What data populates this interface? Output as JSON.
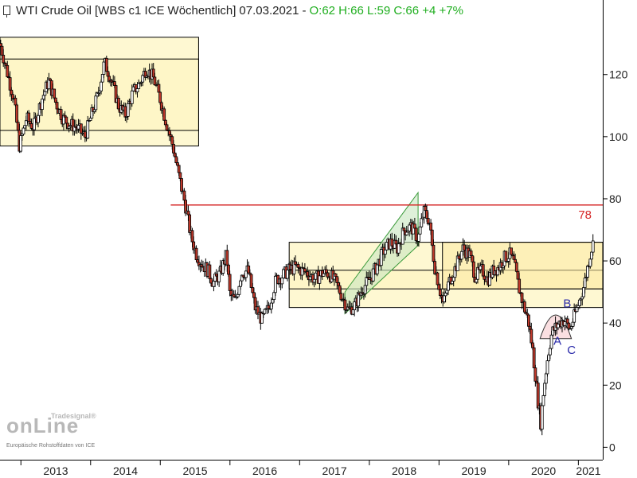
{
  "header": {
    "instrument": "WTI Crude Oil",
    "contract": "[WBS c1 ICE",
    "interval": "Wöchentlich]",
    "date": "07.03.2021",
    "separator": "-",
    "ohlc_text": "O:62 H:66 L:59 C:66 +4 +7%"
  },
  "logo": {
    "brand_small": "Tradesignal®",
    "brand_main": "onLine",
    "source_note": "Europäische Rohstoffdaten von ICE"
  },
  "colors": {
    "candle_up": "#ffffff",
    "candle_down": "#c0392b",
    "zone_fill": "#fdf6c3",
    "zone_border": "#000000",
    "resistance_line": "#d62828",
    "channel_fill": "#c8e6c0",
    "channel_border": "#3a9a3a",
    "annotation_label": "#2a2aaa",
    "cup_fill": "#f9d9dc"
  },
  "chart_data": {
    "type": "candlestick",
    "title": "WTI Crude Oil",
    "interval": "weekly",
    "x_axis": {
      "tick_labels": [
        "2013",
        "2014",
        "2015",
        "2016",
        "2017",
        "2018",
        "2019",
        "2020",
        "2021"
      ],
      "range": [
        "2012.70",
        "2021.35"
      ]
    },
    "y_axis": {
      "side": "right",
      "tick_labels": [
        "120",
        "100",
        "80",
        "60",
        "40",
        "20",
        "0"
      ],
      "tick_values": [
        120,
        100,
        80,
        60,
        40,
        20,
        0
      ],
      "range": [
        -4,
        144
      ]
    },
    "grid": false,
    "legend": "none",
    "price_path": [
      [
        2012.7,
        130
      ],
      [
        2012.8,
        121
      ],
      [
        2012.9,
        112
      ],
      [
        2012.98,
        97
      ],
      [
        2013.08,
        106
      ],
      [
        2013.18,
        103
      ],
      [
        2013.3,
        112
      ],
      [
        2013.4,
        118
      ],
      [
        2013.5,
        111
      ],
      [
        2013.6,
        106
      ],
      [
        2013.7,
        104
      ],
      [
        2013.8,
        103
      ],
      [
        2013.92,
        100
      ],
      [
        2014.0,
        106
      ],
      [
        2014.1,
        113
      ],
      [
        2014.2,
        124
      ],
      [
        2014.3,
        118
      ],
      [
        2014.4,
        110
      ],
      [
        2014.5,
        107
      ],
      [
        2014.6,
        114
      ],
      [
        2014.7,
        117
      ],
      [
        2014.8,
        122
      ],
      [
        2014.9,
        119
      ],
      [
        2015.0,
        112
      ],
      [
        2015.08,
        105
      ],
      [
        2015.18,
        97
      ],
      [
        2015.28,
        86
      ],
      [
        2015.36,
        78
      ],
      [
        2015.44,
        68
      ],
      [
        2015.52,
        62
      ],
      [
        2015.6,
        59
      ],
      [
        2015.68,
        57
      ],
      [
        2015.76,
        53
      ],
      [
        2015.86,
        56
      ],
      [
        2015.95,
        62
      ],
      [
        2016.0,
        49
      ],
      [
        2016.08,
        47
      ],
      [
        2016.16,
        56
      ],
      [
        2016.26,
        57
      ],
      [
        2016.36,
        45
      ],
      [
        2016.46,
        41
      ],
      [
        2016.56,
        45
      ],
      [
        2016.66,
        54
      ],
      [
        2016.74,
        55
      ],
      [
        2016.84,
        57
      ],
      [
        2016.94,
        58
      ],
      [
        2017.02,
        57
      ],
      [
        2017.12,
        56
      ],
      [
        2017.22,
        54
      ],
      [
        2017.32,
        56
      ],
      [
        2017.42,
        56
      ],
      [
        2017.52,
        53
      ],
      [
        2017.6,
        49
      ],
      [
        2017.7,
        44
      ],
      [
        2017.8,
        46
      ],
      [
        2017.9,
        51
      ],
      [
        2018.0,
        54
      ],
      [
        2018.1,
        58
      ],
      [
        2018.2,
        63
      ],
      [
        2018.3,
        66
      ],
      [
        2018.4,
        64
      ],
      [
        2018.5,
        70
      ],
      [
        2018.6,
        71
      ],
      [
        2018.7,
        67
      ],
      [
        2018.78,
        76
      ],
      [
        2018.86,
        73
      ],
      [
        2018.9,
        65
      ],
      [
        2018.94,
        58
      ],
      [
        2019.0,
        52
      ],
      [
        2019.06,
        46
      ],
      [
        2019.14,
        53
      ],
      [
        2019.24,
        58
      ],
      [
        2019.34,
        64
      ],
      [
        2019.44,
        62
      ],
      [
        2019.52,
        55
      ],
      [
        2019.62,
        57
      ],
      [
        2019.7,
        54
      ],
      [
        2019.78,
        57
      ],
      [
        2019.86,
        58
      ],
      [
        2019.94,
        61
      ],
      [
        2020.02,
        62
      ],
      [
        2020.08,
        59
      ],
      [
        2020.14,
        52
      ],
      [
        2020.22,
        45
      ],
      [
        2020.28,
        41
      ],
      [
        2020.34,
        32
      ],
      [
        2020.38,
        24
      ],
      [
        2020.42,
        15
      ],
      [
        2020.46,
        8
      ],
      [
        2020.5,
        18
      ],
      [
        2020.56,
        29
      ],
      [
        2020.62,
        37
      ],
      [
        2020.72,
        40
      ],
      [
        2020.8,
        41
      ],
      [
        2020.88,
        38
      ],
      [
        2020.94,
        42
      ],
      [
        2021.0,
        46
      ],
      [
        2021.08,
        52
      ],
      [
        2021.16,
        61
      ],
      [
        2021.2,
        65
      ],
      [
        2021.22,
        66
      ]
    ],
    "zones": [
      {
        "name": "zone-2013-outer",
        "x_start": 2012.7,
        "x_end": 2015.55,
        "y_low": 97,
        "y_high": 132
      },
      {
        "name": "zone-2013-inner",
        "x_start": 2012.7,
        "x_end": 2015.55,
        "y_low": 102,
        "y_high": 125
      },
      {
        "name": "zone-2016-2020-outer",
        "x_start": 2016.85,
        "x_end": 2021.8,
        "y_low": 45,
        "y_high": 66
      },
      {
        "name": "zone-2016-2020-inner",
        "x_start": 2016.85,
        "x_end": 2021.8,
        "y_low": 51,
        "y_high": 57
      },
      {
        "name": "zone-2019-highlight",
        "x_start": 2019.05,
        "x_end": 2021.8,
        "y_low": 51,
        "y_high": 66
      }
    ],
    "channel": {
      "x_start": 2017.65,
      "x_end": 2018.7,
      "lower_start": 43,
      "lower_end": 65,
      "upper_start": 50,
      "upper_end": 82
    },
    "resistance": {
      "value": 78,
      "label": "78",
      "x_start": 2015.15,
      "x_end": 2021.35
    },
    "cup": {
      "x_start": 2020.45,
      "x_end": 2020.9,
      "y_base": 35,
      "y_top": 43
    },
    "annotations": [
      {
        "label": "A",
        "x": 2020.7,
        "y": 33
      },
      {
        "label": "B",
        "x": 2020.84,
        "y": 45
      },
      {
        "label": "C",
        "x": 2020.9,
        "y": 30
      }
    ]
  }
}
